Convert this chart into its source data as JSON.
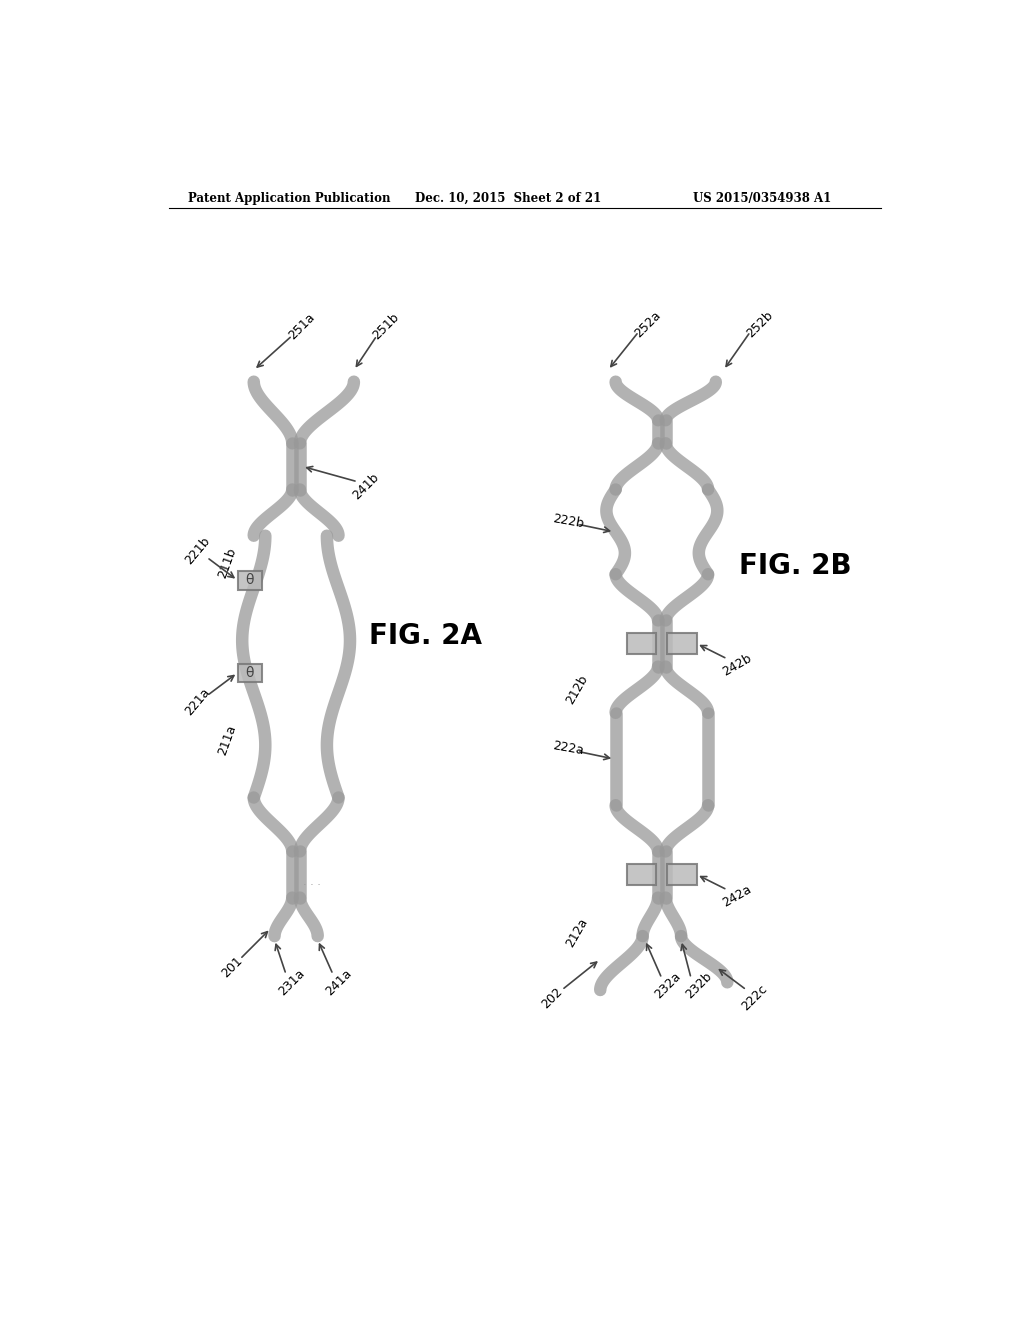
{
  "bg_color": "#ffffff",
  "header_left": "Patent Application Publication",
  "header_mid": "Dec. 10, 2015  Sheet 2 of 21",
  "header_right": "US 2015/0354938 A1",
  "fig2a_label": "FIG. 2A",
  "fig2b_label": "FIG. 2B",
  "waveguide_color": "#999999",
  "waveguide_lw": 9,
  "heater_color": "#bbbbbb",
  "heater_border": "#777777",
  "arrow_color": "#444444",
  "label_color": "#000000",
  "label_fontsize": 9,
  "fig_label_fontsize": 20
}
